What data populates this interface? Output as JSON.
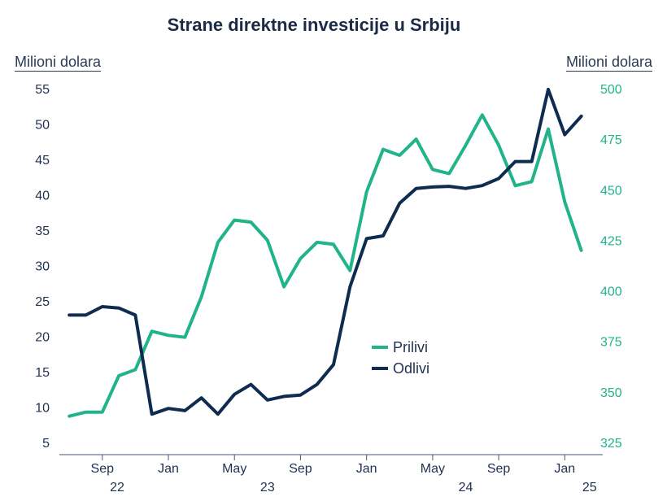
{
  "chart_data": {
    "type": "line",
    "title": "Strane direktne investicije u Srbiju",
    "left_axis_label": "Milioni dolara",
    "right_axis_label": "Milioni dolara",
    "left_axis": {
      "range": [
        5,
        55
      ],
      "ticks": [
        5,
        10,
        15,
        20,
        25,
        30,
        35,
        40,
        45,
        50,
        55
      ]
    },
    "right_axis": {
      "range": [
        325,
        500
      ],
      "ticks": [
        325,
        350,
        375,
        400,
        425,
        450,
        475,
        500
      ]
    },
    "x_month_labels": [
      "Sep",
      "Jan",
      "May",
      "Sep",
      "Jan",
      "May",
      "Sep",
      "Jan"
    ],
    "x_month_positions": [
      2,
      6,
      10,
      14,
      18,
      22,
      26,
      30
    ],
    "x_year_labels": [
      {
        "label": "22",
        "pos": 2.9
      },
      {
        "label": "23",
        "pos": 12
      },
      {
        "label": "24",
        "pos": 24
      },
      {
        "label": "25",
        "pos": 31.5
      }
    ],
    "x_range": [
      -0.6,
      32.3
    ],
    "legend": [
      "Prilivi",
      "Odlivi"
    ],
    "series": [
      {
        "name": "Prilivi",
        "axis": "right",
        "color": "#21b38a",
        "x": [
          0,
          1,
          2,
          3,
          4,
          5,
          6,
          7,
          8,
          9,
          10,
          11,
          12,
          13,
          14,
          15,
          16,
          17,
          18,
          19,
          20,
          21,
          22,
          23,
          24,
          25,
          26,
          27,
          28,
          29,
          30,
          31
        ],
        "values": [
          338,
          340,
          340,
          358,
          361,
          380,
          378,
          377,
          397,
          424,
          435,
          434,
          425,
          402,
          416,
          424,
          423,
          410,
          449,
          470,
          467,
          475,
          460,
          458,
          472,
          487,
          472,
          452,
          454,
          480,
          444,
          420
        ]
      },
      {
        "name": "Odlivi",
        "axis": "left",
        "color": "#0d2c4f",
        "x": [
          0,
          1,
          2,
          3,
          4,
          5,
          6,
          7,
          8,
          9,
          10,
          11,
          12,
          13,
          14,
          15,
          16,
          17,
          18,
          19,
          20,
          21,
          22,
          23,
          24,
          25,
          26,
          27,
          28,
          29,
          30,
          31
        ],
        "values": [
          23,
          23,
          24.2,
          24,
          23,
          9,
          9.8,
          9.5,
          11.3,
          9,
          11.8,
          13.2,
          11,
          11.5,
          11.7,
          13.2,
          16,
          27,
          33.8,
          34.2,
          38.8,
          40.9,
          41.1,
          41.2,
          40.9,
          41.3,
          42.3,
          44.7,
          44.7,
          54.9,
          48.5,
          51.1
        ]
      }
    ]
  }
}
